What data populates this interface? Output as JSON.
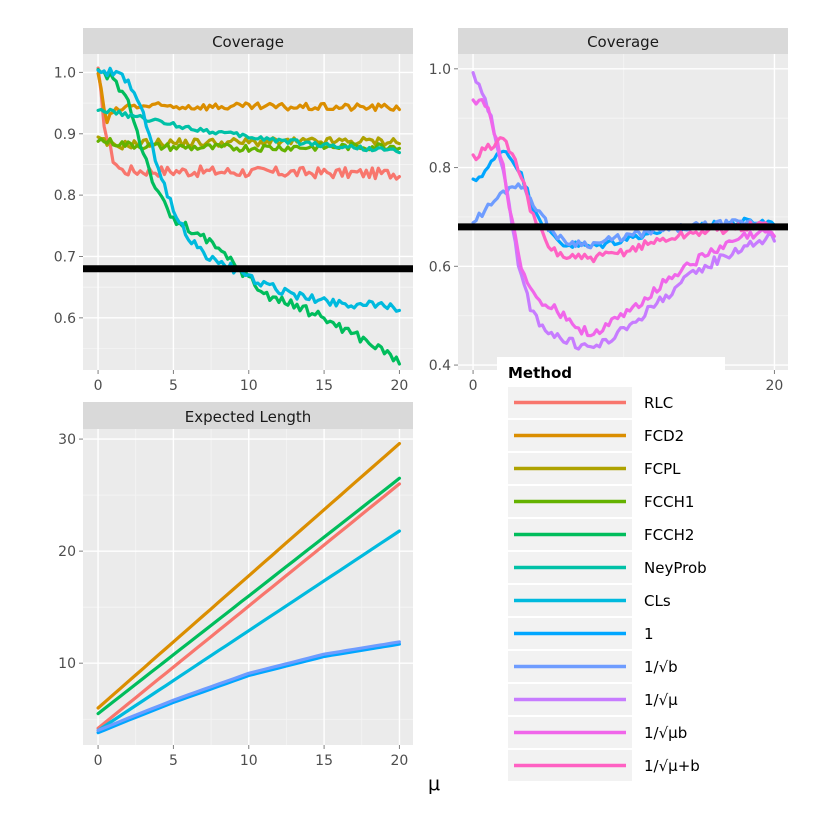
{
  "colors": {
    "panel_bg": "#ebebeb",
    "strip_bg": "#d9d9d9",
    "grid_major": "#ffffff",
    "grid_minor": "#f5f5f5",
    "ref_line": "#000000"
  },
  "x_axis_label": "μ",
  "legend": {
    "title": "Method",
    "items": [
      {
        "label": "RLC",
        "color": "#F8766D"
      },
      {
        "label": "FCD2",
        "color": "#DB8E00"
      },
      {
        "label": "FCPL",
        "color": "#AEA200"
      },
      {
        "label": "FCCH1",
        "color": "#64B200"
      },
      {
        "label": "FCCH2",
        "color": "#00BD5C"
      },
      {
        "label": "NeyProb",
        "color": "#00C1A7"
      },
      {
        "label": "CLs",
        "color": "#00BADE"
      },
      {
        "label": "1",
        "color": "#00A6FF"
      },
      {
        "label": "1/√b",
        "color": "#6E9CFF"
      },
      {
        "label": "1/√μ",
        "color": "#C77CFF"
      },
      {
        "label": "1/√μb",
        "color": "#F066EA"
      },
      {
        "label": "1/√μ+b",
        "color": "#FF61C3"
      }
    ]
  },
  "chart_data": [
    {
      "type": "line",
      "id": "coverage-fc",
      "title": "Coverage",
      "xlim": [
        -1,
        20.9
      ],
      "ylim": [
        0.515,
        1.03
      ],
      "x_ticks": [
        0,
        5,
        10,
        15,
        20
      ],
      "x_tick_labels": [
        "0",
        "5",
        "10",
        "15",
        "20"
      ],
      "y_ticks": [
        0.6,
        0.7,
        0.8,
        0.9,
        1.0
      ],
      "y_tick_labels": [
        "0.6",
        "0.7",
        "0.8",
        "0.9",
        "1.0"
      ],
      "hline": 0.68,
      "series": [
        {
          "name": "RLC",
          "color": "#F8766D",
          "noise": 0.009,
          "points": [
            [
              0,
              1.0
            ],
            [
              0.5,
              0.9
            ],
            [
              1,
              0.86
            ],
            [
              1.5,
              0.84
            ],
            [
              20,
              0.835
            ]
          ]
        },
        {
          "name": "FCD2",
          "color": "#DB8E00",
          "noise": 0.006,
          "points": [
            [
              0,
              1.0
            ],
            [
              0.4,
              0.94
            ],
            [
              0.6,
              0.92
            ],
            [
              1,
              0.935
            ],
            [
              2,
              0.945
            ],
            [
              20,
              0.943
            ]
          ]
        },
        {
          "name": "FCPL",
          "color": "#AEA200",
          "noise": 0.007,
          "points": [
            [
              0,
              0.89
            ],
            [
              1,
              0.88
            ],
            [
              3,
              0.885
            ],
            [
              20,
              0.888
            ]
          ]
        },
        {
          "name": "FCCH1",
          "color": "#64B200",
          "noise": 0.006,
          "points": [
            [
              0,
              0.89
            ],
            [
              2,
              0.882
            ],
            [
              5,
              0.878
            ],
            [
              10,
              0.877
            ],
            [
              20,
              0.88
            ]
          ]
        },
        {
          "name": "FCCH2",
          "color": "#00BD5C",
          "noise": 0.008,
          "points": [
            [
              0,
              1.0
            ],
            [
              1,
              0.99
            ],
            [
              2,
              0.955
            ],
            [
              3,
              0.87
            ],
            [
              4,
              0.8
            ],
            [
              5,
              0.76
            ],
            [
              7,
              0.73
            ],
            [
              9,
              0.69
            ],
            [
              11,
              0.64
            ],
            [
              15,
              0.6
            ],
            [
              18,
              0.56
            ],
            [
              20,
              0.53
            ]
          ]
        },
        {
          "name": "NeyProb",
          "color": "#00C1A7",
          "noise": 0.004,
          "points": [
            [
              0,
              0.94
            ],
            [
              1,
              0.935
            ],
            [
              3,
              0.925
            ],
            [
              6,
              0.91
            ],
            [
              10,
              0.895
            ],
            [
              15,
              0.882
            ],
            [
              20,
              0.872
            ]
          ]
        },
        {
          "name": "CLs",
          "color": "#00BADE",
          "noise": 0.007,
          "points": [
            [
              0,
              1.0
            ],
            [
              1,
              1.0
            ],
            [
              2,
              0.985
            ],
            [
              3,
              0.93
            ],
            [
              4,
              0.84
            ],
            [
              5,
              0.78
            ],
            [
              6,
              0.73
            ],
            [
              7,
              0.705
            ],
            [
              8,
              0.69
            ],
            [
              9,
              0.68
            ],
            [
              10,
              0.665
            ],
            [
              12,
              0.645
            ],
            [
              14,
              0.632
            ],
            [
              17,
              0.622
            ],
            [
              20,
              0.617
            ]
          ]
        }
      ]
    },
    {
      "type": "line",
      "id": "coverage-prior",
      "title": "Coverage",
      "xlim": [
        -1,
        20.9
      ],
      "ylim": [
        0.39,
        1.03
      ],
      "x_ticks": [
        0,
        20
      ],
      "x_tick_labels": [
        "0",
        "20"
      ],
      "y_ticks": [
        0.4,
        0.6,
        0.8,
        1.0
      ],
      "y_tick_labels": [
        "0.4",
        "0.6",
        "0.8",
        "1.0"
      ],
      "hline": 0.68,
      "series": [
        {
          "name": "1",
          "color": "#00A6FF",
          "noise": 0.008,
          "points": [
            [
              0,
              0.77
            ],
            [
              1,
              0.8
            ],
            [
              2,
              0.84
            ],
            [
              3,
              0.8
            ],
            [
              4,
              0.72
            ],
            [
              5,
              0.67
            ],
            [
              6,
              0.645
            ],
            [
              8,
              0.64
            ],
            [
              10,
              0.655
            ],
            [
              12,
              0.67
            ],
            [
              15,
              0.68
            ],
            [
              18,
              0.69
            ],
            [
              20,
              0.69
            ]
          ]
        },
        {
          "name": "1/√b",
          "color": "#6E9CFF",
          "noise": 0.008,
          "points": [
            [
              0,
              0.69
            ],
            [
              1,
              0.72
            ],
            [
              2,
              0.75
            ],
            [
              3,
              0.77
            ],
            [
              4,
              0.73
            ],
            [
              5,
              0.68
            ],
            [
              6,
              0.65
            ],
            [
              8,
              0.645
            ],
            [
              10,
              0.66
            ],
            [
              13,
              0.675
            ],
            [
              16,
              0.685
            ],
            [
              20,
              0.69
            ]
          ]
        },
        {
          "name": "1/√μ",
          "color": "#C77CFF",
          "noise": 0.01,
          "points": [
            [
              0,
              0.985
            ],
            [
              0.5,
              0.97
            ],
            [
              1,
              0.92
            ],
            [
              2,
              0.8
            ],
            [
              3,
              0.6
            ],
            [
              4,
              0.5
            ],
            [
              5,
              0.47
            ],
            [
              6,
              0.45
            ],
            [
              7,
              0.44
            ],
            [
              8,
              0.435
            ],
            [
              9,
              0.45
            ],
            [
              10,
              0.47
            ],
            [
              12,
              0.52
            ],
            [
              14,
              0.57
            ],
            [
              16,
              0.61
            ],
            [
              18,
              0.64
            ],
            [
              20,
              0.66
            ]
          ]
        },
        {
          "name": "1/√μb",
          "color": "#F066EA",
          "noise": 0.01,
          "points": [
            [
              0,
              0.94
            ],
            [
              1,
              0.92
            ],
            [
              2,
              0.8
            ],
            [
              3,
              0.62
            ],
            [
              4,
              0.54
            ],
            [
              5,
              0.52
            ],
            [
              6,
              0.5
            ],
            [
              7,
              0.475
            ],
            [
              8,
              0.465
            ],
            [
              9,
              0.48
            ],
            [
              10,
              0.5
            ],
            [
              12,
              0.55
            ],
            [
              14,
              0.6
            ],
            [
              16,
              0.63
            ],
            [
              18,
              0.66
            ],
            [
              20,
              0.67
            ]
          ]
        },
        {
          "name": "1/√μ+b",
          "color": "#FF61C3",
          "noise": 0.009,
          "points": [
            [
              0,
              0.82
            ],
            [
              1,
              0.84
            ],
            [
              2,
              0.86
            ],
            [
              3,
              0.8
            ],
            [
              4,
              0.7
            ],
            [
              5,
              0.64
            ],
            [
              6,
              0.62
            ],
            [
              8,
              0.615
            ],
            [
              10,
              0.63
            ],
            [
              12,
              0.65
            ],
            [
              15,
              0.67
            ],
            [
              18,
              0.68
            ],
            [
              20,
              0.685
            ]
          ]
        }
      ]
    },
    {
      "type": "line",
      "id": "expected-length",
      "title": "Expected Length",
      "xlim": [
        -1,
        20.9
      ],
      "ylim": [
        2.7,
        30.9
      ],
      "x_ticks": [
        0,
        5,
        10,
        15,
        20
      ],
      "x_tick_labels": [
        "0",
        "5",
        "10",
        "15",
        "20"
      ],
      "y_ticks": [
        10,
        20,
        30
      ],
      "y_tick_labels": [
        "10",
        "20",
        "30"
      ],
      "series": [
        {
          "name": "RLC",
          "color": "#F8766D",
          "noise": 0,
          "points": [
            [
              0,
              4.2
            ],
            [
              20,
              26
            ]
          ]
        },
        {
          "name": "FCD2",
          "color": "#DB8E00",
          "noise": 0,
          "points": [
            [
              0,
              6.0
            ],
            [
              20,
              29.6
            ]
          ]
        },
        {
          "name": "FCCH2",
          "color": "#00BD5C",
          "noise": 0,
          "points": [
            [
              0,
              5.5
            ],
            [
              20,
              26.5
            ]
          ]
        },
        {
          "name": "CLs",
          "color": "#00BADE",
          "noise": 0,
          "points": [
            [
              0,
              4.0
            ],
            [
              20,
              21.8
            ]
          ]
        },
        {
          "name": "1",
          "color": "#00A6FF",
          "noise": 0,
          "points": [
            [
              0,
              3.8
            ],
            [
              2,
              4.9
            ],
            [
              5,
              6.5
            ],
            [
              10,
              8.9
            ],
            [
              15,
              10.6
            ],
            [
              20,
              11.7
            ]
          ]
        },
        {
          "name": "1/√b",
          "color": "#6E9CFF",
          "noise": 0,
          "points": [
            [
              0,
              4.0
            ],
            [
              2,
              5.1
            ],
            [
              5,
              6.7
            ],
            [
              10,
              9.1
            ],
            [
              15,
              10.8
            ],
            [
              20,
              11.9
            ]
          ]
        }
      ]
    }
  ]
}
